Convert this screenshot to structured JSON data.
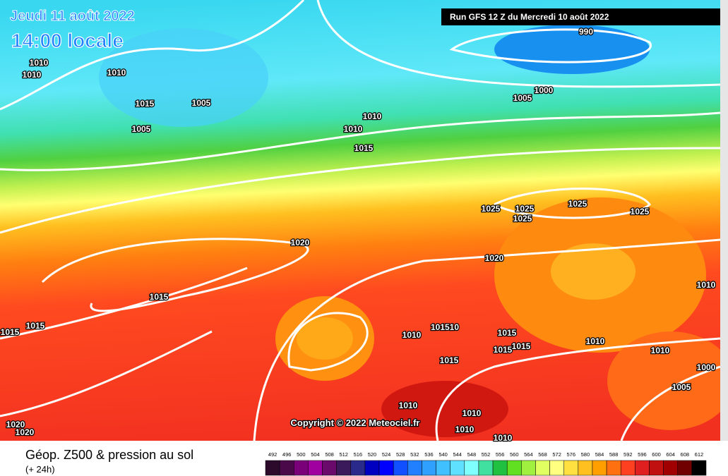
{
  "header": {
    "date": "Jeudi 11 août 2022",
    "time": "14:00 locale",
    "run": "Run GFS 12 Z du Mercredi 10 août 2022"
  },
  "isobar_labels": [
    "1010",
    "1010",
    "1010",
    "1015",
    "1005",
    "1005",
    "1010",
    "1010",
    "1015",
    "990",
    "1000",
    "1005",
    "1025",
    "1025",
    "1025",
    "1025",
    "1025",
    "1020",
    "1020",
    "1015",
    "1015",
    "1015",
    "1010",
    "1010",
    "101510",
    "1015",
    "1015",
    "1015",
    "1010",
    "1010",
    "1015",
    "1000",
    "1005",
    "1010",
    "1010",
    "1010",
    "1010",
    "1020",
    "1020"
  ],
  "copyright": "Copyright © 2022 Meteociel.fr",
  "footer": {
    "title": "Géop. Z500 & pression au sol",
    "subtitle": "(+ 24h)"
  },
  "scale": {
    "values": [
      492,
      496,
      500,
      504,
      508,
      512,
      516,
      520,
      524,
      528,
      532,
      536,
      540,
      544,
      548,
      552,
      556,
      560,
      564,
      568,
      572,
      576,
      580,
      584,
      588,
      592,
      596,
      600,
      604,
      608,
      612
    ],
    "colors": [
      "#2b0a2b",
      "#4a0a4a",
      "#7a007a",
      "#a000a0",
      "#6a0a6a",
      "#3a1a5a",
      "#2a2a8a",
      "#0000c0",
      "#0000ff",
      "#1050ff",
      "#2080ff",
      "#30a0ff",
      "#40c0ff",
      "#60e0ff",
      "#80ffff",
      "#40e0a0",
      "#20c040",
      "#60e020",
      "#a0f040",
      "#e0ff60",
      "#ffff80",
      "#ffe040",
      "#ffc020",
      "#ffa000",
      "#ff7010",
      "#ff4020",
      "#e02020",
      "#c01010",
      "#a00000",
      "#700000",
      "#000000"
    ]
  }
}
